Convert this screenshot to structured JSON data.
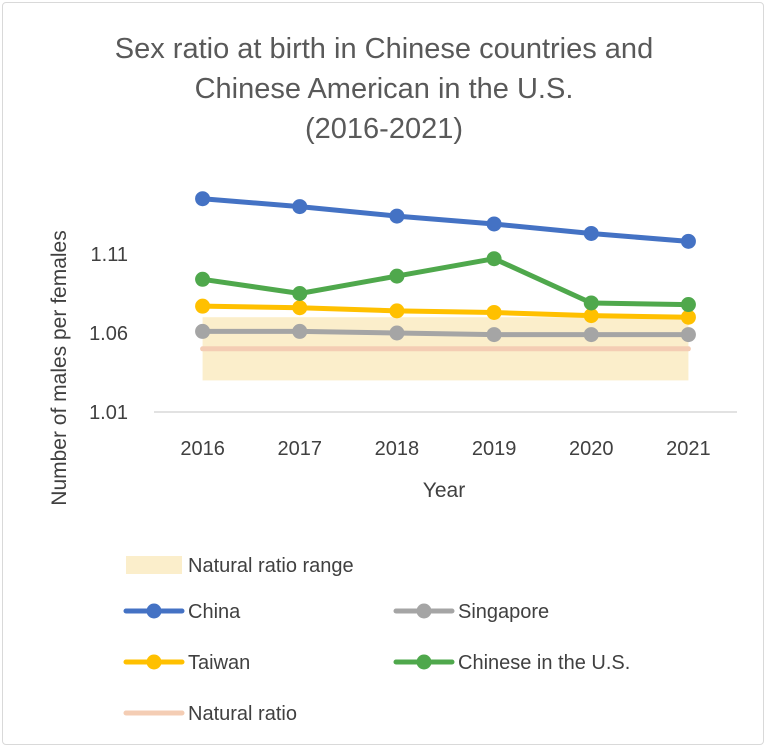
{
  "chart_data": {
    "type": "line",
    "title_lines": [
      "Sex ratio at birth in Chinese countries and",
      "Chinese American in the U.S.",
      "(2016-2021)"
    ],
    "xlabel": "Year",
    "ylabel": "Number of males per females",
    "categories": [
      "2016",
      "2017",
      "2018",
      "2019",
      "2020",
      "2021"
    ],
    "yticks": [
      "1.01",
      "1.06",
      "1.11"
    ],
    "ylim": [
      1.01,
      1.16
    ],
    "grid": false,
    "legend_position": "bottom",
    "natural_range": {
      "name": "Natural ratio range",
      "low": 1.03,
      "high": 1.07,
      "color": "#fbeecb"
    },
    "series": [
      {
        "name": "China",
        "color": "#4472c4",
        "marker": true,
        "values": [
          1.145,
          1.14,
          1.134,
          1.129,
          1.123,
          1.118
        ]
      },
      {
        "name": "Singapore",
        "color": "#a5a5a5",
        "marker": true,
        "values": [
          1.061,
          1.061,
          1.06,
          1.059,
          1.059,
          1.059
        ]
      },
      {
        "name": "Taiwan",
        "color": "#ffc000",
        "marker": true,
        "values": [
          1.077,
          1.076,
          1.074,
          1.073,
          1.071,
          1.07
        ]
      },
      {
        "name": "Chinese in the U.S.",
        "color": "#4fa84c",
        "marker": true,
        "values": [
          1.094,
          1.085,
          1.096,
          1.107,
          1.079,
          1.078
        ]
      },
      {
        "name": "Natural ratio",
        "color": "#f4cdb4",
        "marker": false,
        "values": [
          1.05,
          1.05,
          1.05,
          1.05,
          1.05,
          1.05
        ]
      }
    ]
  }
}
